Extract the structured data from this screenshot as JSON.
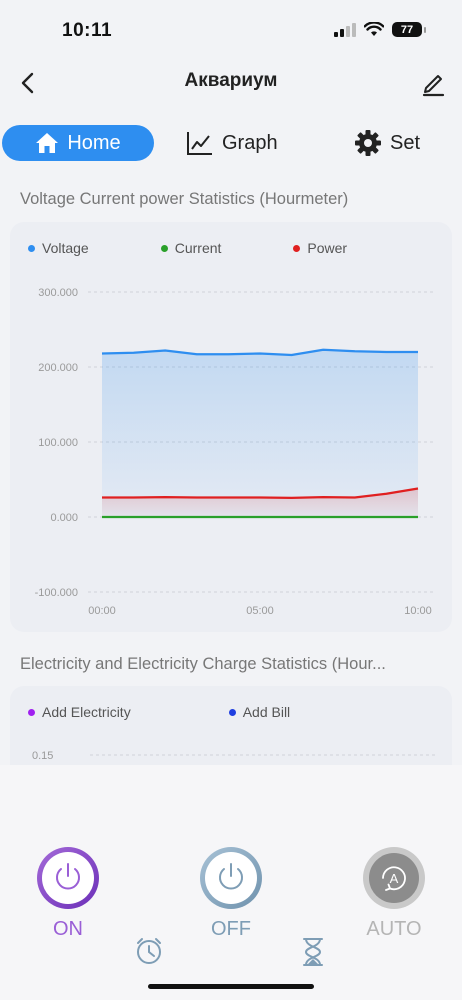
{
  "status": {
    "time": "10:11",
    "battery": "77"
  },
  "header": {
    "title": "Аквариум"
  },
  "tabs": [
    {
      "label": "Home"
    },
    {
      "label": "Graph"
    },
    {
      "label": "Set"
    }
  ],
  "section1": {
    "title": "Voltage Current power Statistics (Hourmeter)"
  },
  "section2": {
    "title": "Electricity and Electricity Charge Statistics (Hour..."
  },
  "colors": {
    "accent": "#2e8ef0",
    "voltage": "#2e8ef0",
    "current": "#2aa02a",
    "power": "#e02020",
    "electricity": "#a020f0",
    "bill": "#1f3fe0"
  },
  "chart_data": [
    {
      "type": "line",
      "title": "",
      "x": [
        "00:00",
        "01:00",
        "02:00",
        "03:00",
        "04:00",
        "05:00",
        "06:00",
        "07:00",
        "08:00",
        "09:00",
        "10:00"
      ],
      "xticks": [
        "00:00",
        "05:00",
        "10:00"
      ],
      "ylim": [
        -100,
        300
      ],
      "yticks": [
        "300.000",
        "200.000",
        "100.000",
        "0.000",
        "-100.000"
      ],
      "grid": true,
      "legend": "top-left",
      "series": [
        {
          "name": "Voltage",
          "color": "#2e8ef0",
          "values": [
            218,
            219,
            222,
            217,
            217,
            218,
            216,
            223,
            221,
            220,
            220
          ]
        },
        {
          "name": "Current",
          "color": "#2aa02a",
          "values": [
            0,
            0,
            0,
            0,
            0,
            0,
            0,
            0,
            0,
            0,
            0
          ]
        },
        {
          "name": "Power",
          "color": "#e02020",
          "values": [
            26,
            26,
            26.5,
            26,
            26,
            26,
            25.5,
            26.5,
            26,
            31,
            38
          ]
        }
      ]
    },
    {
      "type": "line",
      "title": "",
      "yticks": [
        "0.15"
      ],
      "legend": "top-left",
      "series": [
        {
          "name": "Add Electricity",
          "color": "#a020f0",
          "values": []
        },
        {
          "name": "Add Bill",
          "color": "#1f3fe0",
          "values": []
        }
      ]
    }
  ],
  "controls": {
    "on_label": "ON",
    "off_label": "OFF",
    "auto_label": "AUTO"
  },
  "icons": [
    "back-icon",
    "edit-icon",
    "home-icon",
    "graph-icon",
    "gear-icon",
    "power-icon",
    "auto-icon",
    "timer-icon",
    "hourglass-icon"
  ]
}
